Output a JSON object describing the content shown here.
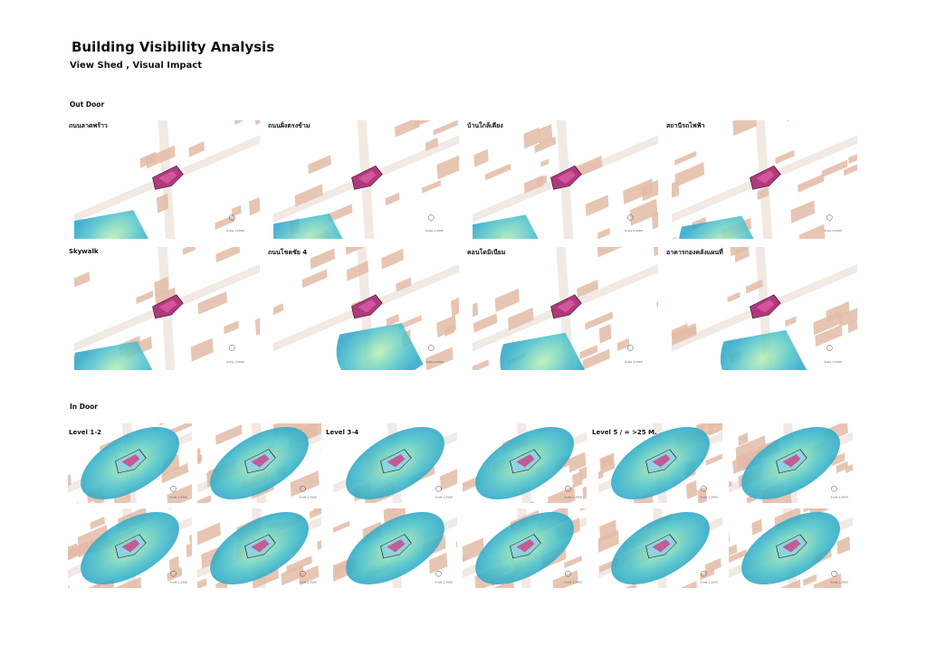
{
  "header": {
    "title": "Building Visibility Analysis",
    "subtitle": "View Shed , Visual Impact"
  },
  "outdoor": {
    "heading": "Out Door",
    "panels": [
      {
        "label": "ถนนลาดพร้าว"
      },
      {
        "label": "ถนนฝั่งตรงข้าม"
      },
      {
        "label": "บ้านใกล้เคียง"
      },
      {
        "label": "สถานีรถไฟฟ้า"
      },
      {
        "label": "Skywalk"
      },
      {
        "label": "ถนนโชคชัย 4"
      },
      {
        "label": "คอนโดมิเนียม"
      },
      {
        "label": "อาคารกองคลังแผนที่"
      }
    ]
  },
  "indoor": {
    "heading": "In Door",
    "groups": [
      {
        "label": "Level 1-2"
      },
      {
        "label": "Level 3-4"
      },
      {
        "label": "Level 5 / = >25 M."
      }
    ]
  },
  "scale_label": "Scale 1:2000"
}
